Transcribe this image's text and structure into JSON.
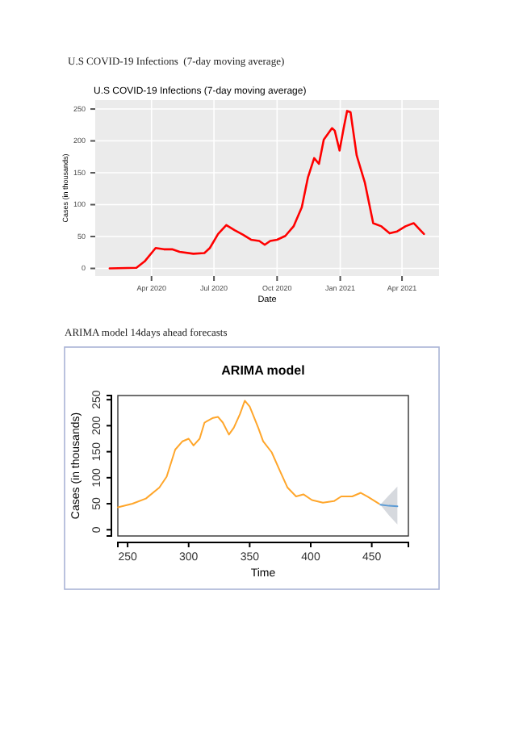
{
  "chart_data": [
    {
      "type": "line",
      "title": "U.S COVID-19 Infections (7-day moving average)",
      "xlabel": "Date",
      "ylabel": "Cases (in thousands)",
      "annotations": [
        "U.S COVID-19 Infections  (7-day moving average)"
      ],
      "x": [
        "2020-01-31",
        "2020-03-10",
        "2020-03-22",
        "2020-04-07",
        "2020-04-19",
        "2020-05-01",
        "2020-05-12",
        "2020-06-01",
        "2020-06-17",
        "2020-06-25",
        "2020-07-07",
        "2020-07-19",
        "2020-07-31",
        "2020-08-12",
        "2020-08-24",
        "2020-09-05",
        "2020-09-13",
        "2020-09-21",
        "2020-10-01",
        "2020-10-13",
        "2020-10-25",
        "2020-11-06",
        "2020-11-15",
        "2020-11-24",
        "2020-12-01",
        "2020-12-08",
        "2020-12-20",
        "2020-12-24",
        "2020-12-31",
        "2021-01-06",
        "2021-01-11",
        "2021-01-16",
        "2021-01-25",
        "2021-02-06",
        "2021-02-18",
        "2021-03-02",
        "2021-03-14",
        "2021-03-25",
        "2021-04-06",
        "2021-04-18",
        "2021-04-26",
        "2021-05-03"
      ],
      "series": [
        {
          "color": "#ff0000",
          "values": [
            0,
            1,
            11,
            32,
            30,
            30,
            26,
            23,
            24,
            32,
            54,
            68,
            60,
            53,
            45,
            43,
            37,
            43,
            45,
            51,
            66,
            96,
            143,
            173,
            164,
            202,
            220,
            216,
            185,
            220,
            247,
            245,
            177,
            134,
            71,
            66,
            55,
            58,
            66,
            71,
            62,
            54
          ]
        }
      ],
      "xlim": [
        "2020-01-10",
        "2021-05-25"
      ],
      "xticks": [
        {
          "value": "2020-04-01",
          "label": "Apr 2020"
        },
        {
          "value": "2020-07-01",
          "label": "Jul 2020"
        },
        {
          "value": "2020-10-01",
          "label": "Oct 2020"
        },
        {
          "value": "2021-01-01",
          "label": "Jan 2021"
        },
        {
          "value": "2021-04-01",
          "label": "Apr 2021"
        }
      ],
      "ylim": [
        -12,
        264
      ],
      "yticks": [
        0,
        50,
        100,
        150,
        200,
        250
      ],
      "grid": true
    },
    {
      "type": "line",
      "title": "ARIMA model",
      "xlabel": "Time",
      "ylabel": "Cases (in thousands)",
      "annotations": [
        "ARIMA model 14days ahead forecasts"
      ],
      "series": [
        {
          "color": "#ffa62b",
          "x": [
            242,
            254,
            265,
            276,
            282,
            289,
            295,
            300,
            304,
            309,
            313,
            320,
            324,
            328,
            333,
            337,
            342,
            346,
            350,
            357,
            361,
            368,
            375,
            381,
            388,
            394,
            401,
            410,
            419,
            425,
            434,
            441,
            447,
            456
          ],
          "values": [
            43,
            50,
            60,
            81,
            102,
            154,
            170,
            175,
            162,
            175,
            206,
            215,
            217,
            206,
            183,
            196,
            222,
            248,
            237,
            196,
            170,
            149,
            112,
            81,
            64,
            68,
            57,
            52,
            55,
            64,
            64,
            71,
            63,
            50
          ]
        },
        {
          "color": "#5b9bd5",
          "x": [
            457,
            464,
            471
          ],
          "values": [
            48,
            46,
            45
          ],
          "lower": [
            48,
            28,
            10
          ],
          "upper": [
            48,
            66,
            83
          ]
        }
      ],
      "xlim": [
        242,
        480
      ],
      "xticks": [
        250,
        300,
        350,
        400,
        450
      ],
      "ylim": [
        -12,
        258
      ],
      "yticks": [
        0,
        50,
        100,
        150,
        200,
        250
      ]
    }
  ]
}
